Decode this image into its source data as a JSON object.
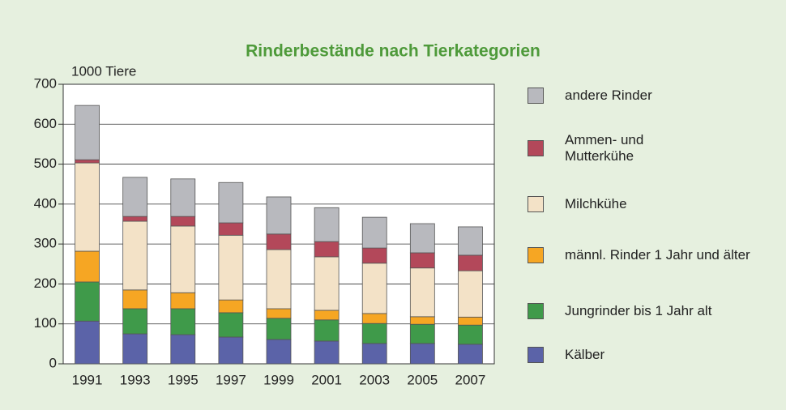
{
  "chart_data": {
    "type": "stacked_bar",
    "title": "Rinderbestände nach Tierkategorien",
    "y_label": "1000 Tiere",
    "categories": [
      "1991",
      "1993",
      "1995",
      "1997",
      "1999",
      "2001",
      "2003",
      "2005",
      "2007"
    ],
    "series": [
      {
        "name": "Kälber",
        "color": "#5b63a8",
        "values": [
          107,
          75,
          73,
          67,
          61,
          57,
          51,
          51,
          49
        ]
      },
      {
        "name": "Jungrinder bis 1 Jahr alt",
        "color": "#3f9a4a",
        "values": [
          98,
          63,
          65,
          61,
          53,
          53,
          50,
          48,
          48
        ]
      },
      {
        "name": "männl. Rinder 1 Jahr und älter",
        "color": "#f6a623",
        "values": [
          77,
          47,
          40,
          32,
          24,
          24,
          25,
          19,
          20
        ]
      },
      {
        "name": "Milchkühe",
        "color": "#f3e2c7",
        "values": [
          221,
          172,
          167,
          162,
          148,
          134,
          126,
          122,
          116
        ]
      },
      {
        "name": "Ammen- und Mutterkühe",
        "color": "#b3485a",
        "values": [
          8,
          12,
          24,
          31,
          39,
          38,
          38,
          38,
          39
        ]
      },
      {
        "name": "andere Rinder",
        "color": "#b8b9be",
        "values": [
          136,
          98,
          94,
          101,
          93,
          85,
          77,
          73,
          71
        ]
      }
    ],
    "ylim": [
      0,
      700
    ],
    "yticks": [
      0,
      100,
      200,
      300,
      400,
      500,
      600,
      700
    ],
    "grid": true,
    "legend": "right"
  }
}
